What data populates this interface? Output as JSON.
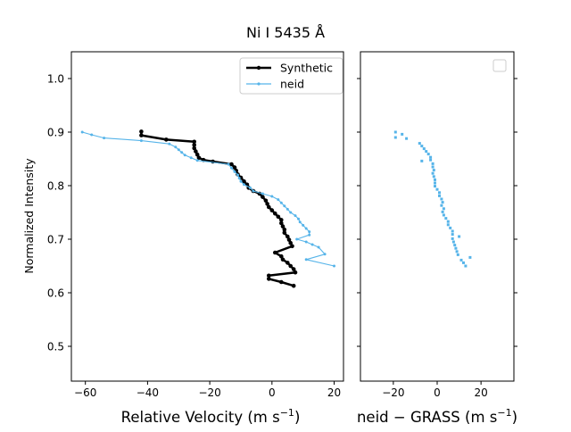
{
  "figure": {
    "title": "Ni I 5435 Å"
  },
  "chart_data": [
    {
      "type": "line",
      "panel": "left",
      "ylabel": "Normalized Intensity",
      "xlabel": "Relative Velocity (m s",
      "xlabel_exp": "−1",
      "xlabel_end": ")",
      "xlim": [
        -64.5,
        23
      ],
      "ylim": [
        0.435,
        1.05
      ],
      "xticks": [
        -60,
        -40,
        -20,
        0,
        20
      ],
      "xtick_labels": [
        "−60",
        "−40",
        "−20",
        "0",
        "20"
      ],
      "yticks": [
        0.5,
        0.6,
        0.7,
        0.8,
        0.9,
        1.0
      ],
      "ytick_labels": [
        "0.5",
        "0.6",
        "0.7",
        "0.8",
        "0.9",
        "1.0"
      ],
      "legend_position": "top-right",
      "series": [
        {
          "name": "Synthetic",
          "color": "#000000",
          "style": "thick-line-with-dots",
          "points": [
            [
              -42,
              0.901
            ],
            [
              -42,
              0.894
            ],
            [
              -34,
              0.886
            ],
            [
              -25,
              0.882
            ],
            [
              -25,
              0.876
            ],
            [
              -25,
              0.87
            ],
            [
              -24.5,
              0.864
            ],
            [
              -24,
              0.858
            ],
            [
              -23.5,
              0.852
            ],
            [
              -22,
              0.848
            ],
            [
              -19,
              0.845
            ],
            [
              -13,
              0.84
            ],
            [
              -12,
              0.834
            ],
            [
              -11.5,
              0.828
            ],
            [
              -11,
              0.821
            ],
            [
              -10,
              0.815
            ],
            [
              -9,
              0.808
            ],
            [
              -8,
              0.802
            ],
            [
              -7.5,
              0.796
            ],
            [
              -6,
              0.79
            ],
            [
              -4,
              0.785
            ],
            [
              -3,
              0.779
            ],
            [
              -2,
              0.772
            ],
            [
              -1.5,
              0.766
            ],
            [
              -1,
              0.76
            ],
            [
              0,
              0.754
            ],
            [
              1,
              0.748
            ],
            [
              2,
              0.742
            ],
            [
              3,
              0.736
            ],
            [
              3,
              0.73
            ],
            [
              3.5,
              0.724
            ],
            [
              4,
              0.718
            ],
            [
              4,
              0.712
            ],
            [
              5,
              0.705
            ],
            [
              5.5,
              0.699
            ],
            [
              6,
              0.693
            ],
            [
              6.5,
              0.687
            ],
            [
              1,
              0.675
            ],
            [
              3,
              0.668
            ],
            [
              3.5,
              0.662
            ],
            [
              5,
              0.656
            ],
            [
              6,
              0.65
            ],
            [
              7,
              0.644
            ],
            [
              7.5,
              0.638
            ],
            [
              -1,
              0.632
            ],
            [
              -1,
              0.626
            ],
            [
              3,
              0.62
            ],
            [
              7,
              0.613
            ]
          ]
        },
        {
          "name": "neid",
          "color": "#56b4e9",
          "style": "thin-line-with-dots",
          "points": [
            [
              -61,
              0.9
            ],
            [
              -58,
              0.895
            ],
            [
              -54,
              0.889
            ],
            [
              -42,
              0.884
            ],
            [
              -33,
              0.878
            ],
            [
              -31,
              0.872
            ],
            [
              -30,
              0.867
            ],
            [
              -29,
              0.862
            ],
            [
              -28,
              0.857
            ],
            [
              -26,
              0.852
            ],
            [
              -24,
              0.847
            ],
            [
              -14,
              0.84
            ],
            [
              -13,
              0.833
            ],
            [
              -12,
              0.826
            ],
            [
              -11,
              0.82
            ],
            [
              -10.5,
              0.814
            ],
            [
              -10,
              0.808
            ],
            [
              -9,
              0.802
            ],
            [
              -7,
              0.796
            ],
            [
              -6,
              0.79
            ],
            [
              -3,
              0.785
            ],
            [
              0,
              0.78
            ],
            [
              2,
              0.774
            ],
            [
              3,
              0.768
            ],
            [
              4,
              0.762
            ],
            [
              5,
              0.756
            ],
            [
              6,
              0.75
            ],
            [
              7.5,
              0.744
            ],
            [
              8.5,
              0.738
            ],
            [
              9,
              0.732
            ],
            [
              10,
              0.726
            ],
            [
              11,
              0.72
            ],
            [
              12,
              0.714
            ],
            [
              12,
              0.708
            ],
            [
              8,
              0.7
            ],
            [
              11,
              0.695
            ],
            [
              13,
              0.69
            ],
            [
              15,
              0.685
            ],
            [
              17,
              0.672
            ],
            [
              11,
              0.662
            ],
            [
              20,
              0.65
            ]
          ]
        }
      ]
    },
    {
      "type": "scatter",
      "panel": "right",
      "xlabel": "neid  −  GRASS (m s",
      "xlabel_exp": "−1",
      "xlabel_end": ")",
      "xlim": [
        -35,
        35
      ],
      "ylim": [
        0.435,
        1.05
      ],
      "xticks": [
        -20,
        0,
        20
      ],
      "xtick_labels": [
        "−20",
        "0",
        "20"
      ],
      "yticks": [
        0.5,
        0.6,
        0.7,
        0.8,
        0.9,
        1.0
      ],
      "legend_position": "top-right",
      "legend_entries": [],
      "series": [
        {
          "color": "#56b4e9",
          "points": [
            [
              -19,
              0.9
            ],
            [
              -16,
              0.896
            ],
            [
              -19,
              0.89
            ],
            [
              -14,
              0.888
            ],
            [
              -8,
              0.879
            ],
            [
              -7,
              0.874
            ],
            [
              -6,
              0.869
            ],
            [
              -5,
              0.864
            ],
            [
              -4,
              0.859
            ],
            [
              -3,
              0.853
            ],
            [
              -7,
              0.846
            ],
            [
              -3,
              0.848
            ],
            [
              -2,
              0.841
            ],
            [
              -2,
              0.835
            ],
            [
              -1.5,
              0.829
            ],
            [
              -2,
              0.823
            ],
            [
              -1.5,
              0.817
            ],
            [
              -1,
              0.811
            ],
            [
              -1,
              0.805
            ],
            [
              -1,
              0.799
            ],
            [
              0,
              0.793
            ],
            [
              1,
              0.787
            ],
            [
              1,
              0.781
            ],
            [
              2,
              0.775
            ],
            [
              2.5,
              0.769
            ],
            [
              2,
              0.763
            ],
            [
              3,
              0.757
            ],
            [
              2.5,
              0.751
            ],
            [
              3,
              0.745
            ],
            [
              4,
              0.739
            ],
            [
              5,
              0.733
            ],
            [
              5,
              0.727
            ],
            [
              6,
              0.721
            ],
            [
              7,
              0.715
            ],
            [
              10,
              0.705
            ],
            [
              7,
              0.709
            ],
            [
              7,
              0.701
            ],
            [
              7.5,
              0.695
            ],
            [
              8,
              0.689
            ],
            [
              8.5,
              0.683
            ],
            [
              9,
              0.677
            ],
            [
              9.5,
              0.671
            ],
            [
              11,
              0.661
            ],
            [
              12,
              0.656
            ],
            [
              13,
              0.65
            ],
            [
              15,
              0.666
            ]
          ]
        }
      ]
    }
  ]
}
